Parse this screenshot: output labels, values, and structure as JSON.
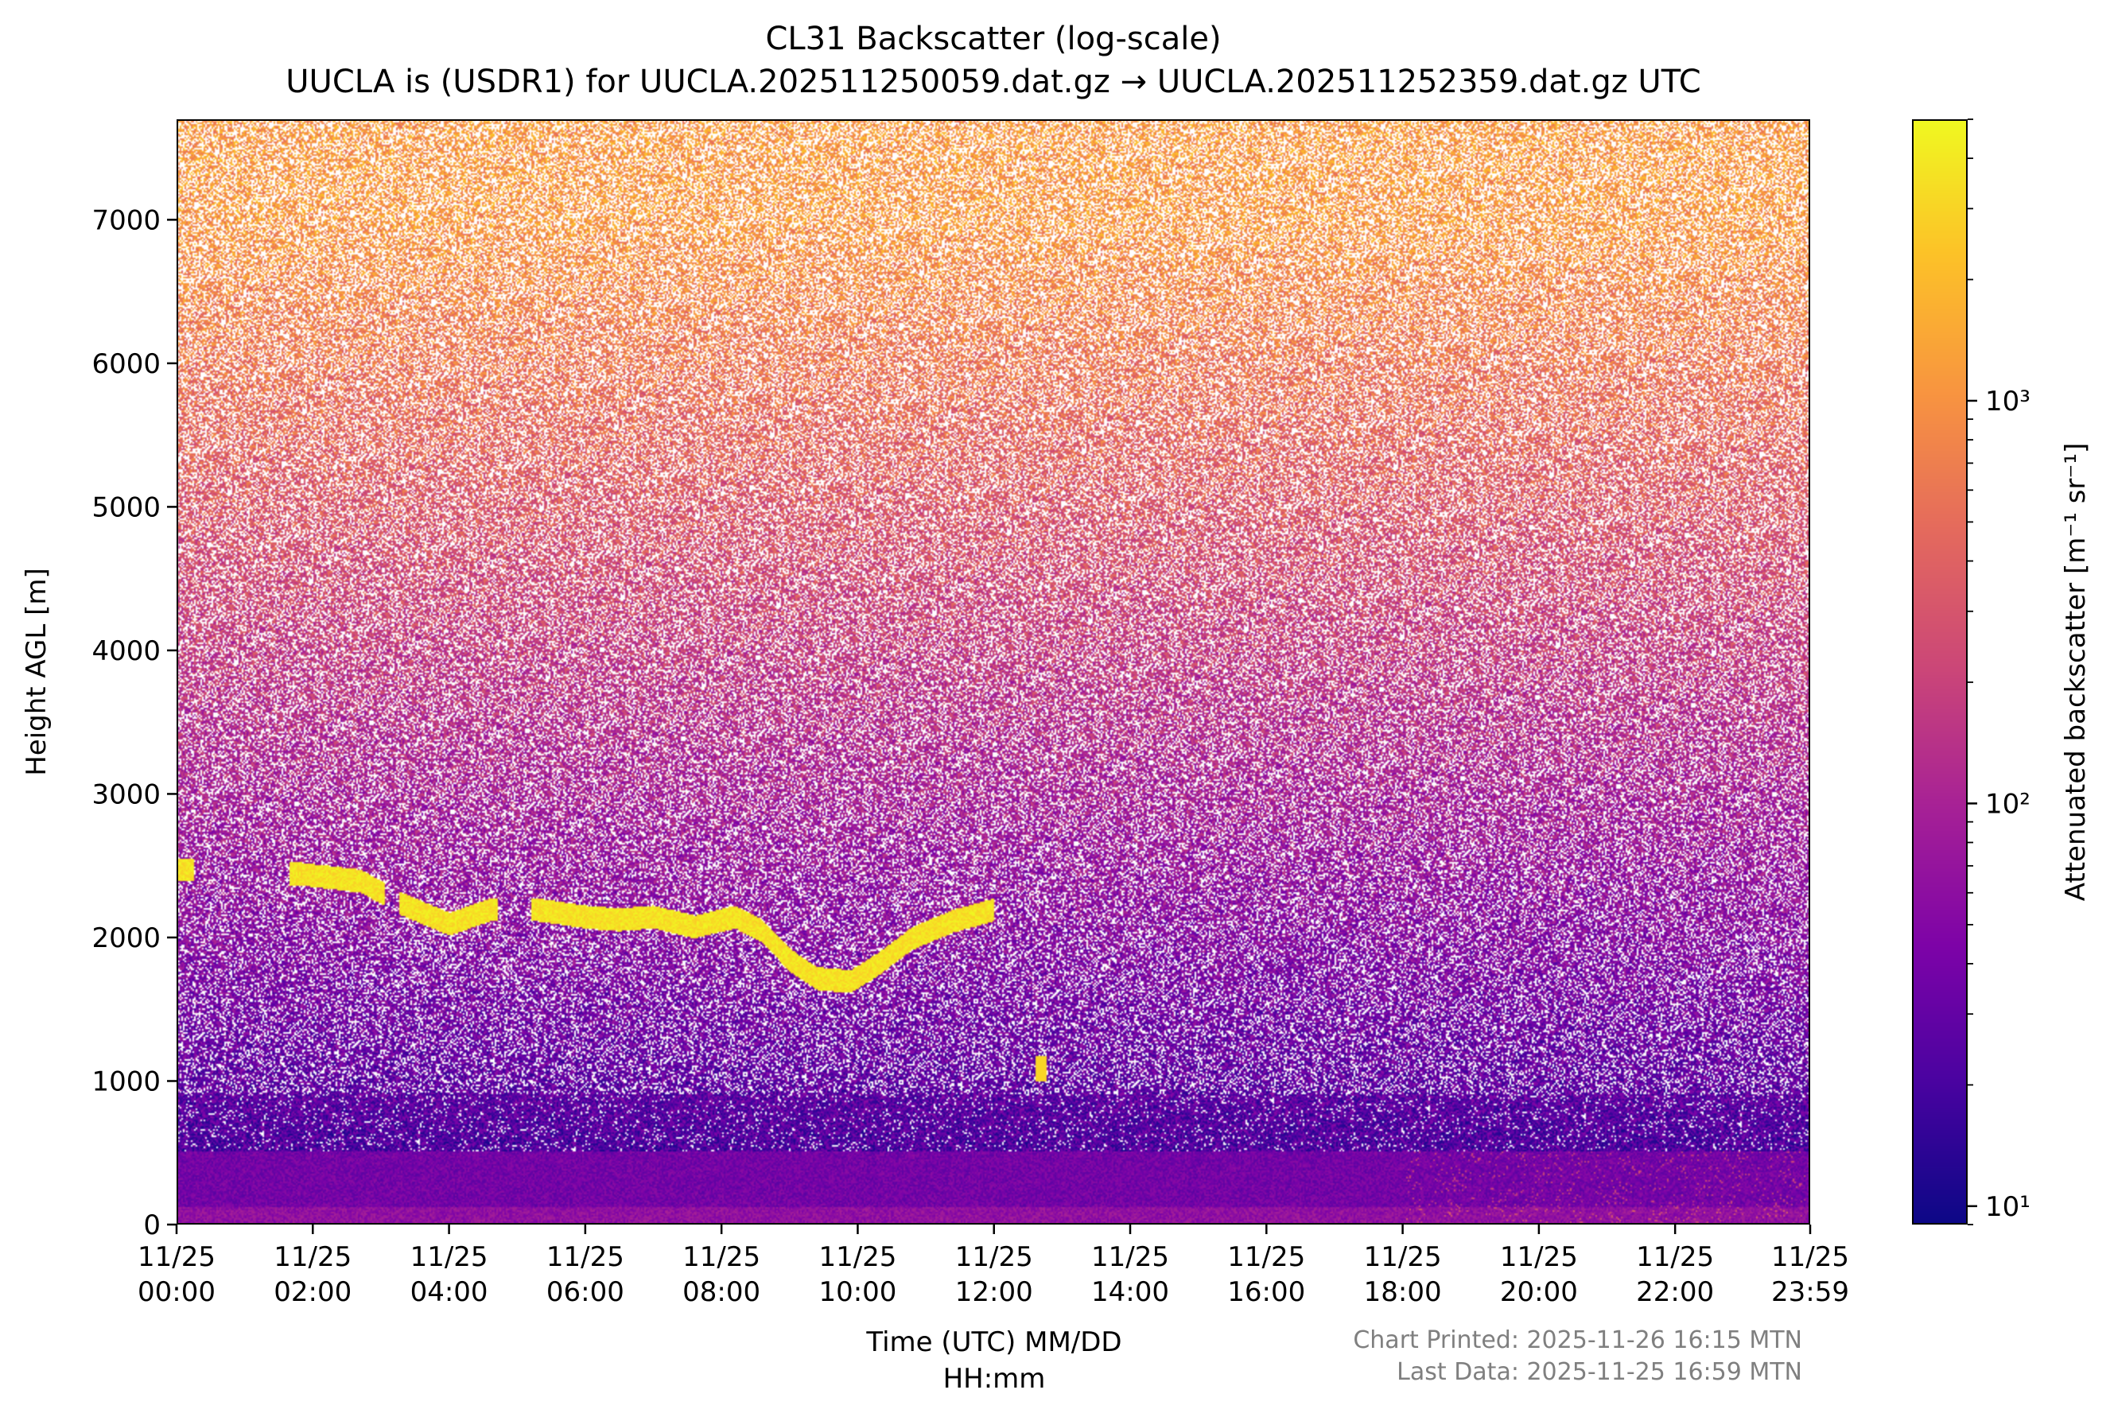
{
  "chart_data": {
    "type": "heatmap",
    "title": "CL31 Backscatter (log-scale)",
    "subtitle": "UUCLA is (USDR1) for UUCLA.202511250059.dat.gz → UUCLA.202511252359.dat.gz UTC",
    "xlabel_lines": [
      "Time (UTC) MM/DD",
      "HH:mm"
    ],
    "ylabel": "Height AGL [m]",
    "colorbar_label": "Attenuated backscatter [m⁻¹ sr⁻¹]",
    "colorbar_scale": "log",
    "colorbar_range": [
      9,
      5000
    ],
    "colorbar_ticks": [
      {
        "value": 10,
        "label": "10¹"
      },
      {
        "value": 100,
        "label": "10²"
      },
      {
        "value": 1000,
        "label": "10³"
      }
    ],
    "colormap": "plasma",
    "xlim_hours": [
      0,
      23.983
    ],
    "ylim": [
      0,
      7700
    ],
    "x_ticks": [
      {
        "hour": 0,
        "date": "11/25",
        "time": "00:00"
      },
      {
        "hour": 2,
        "date": "11/25",
        "time": "02:00"
      },
      {
        "hour": 4,
        "date": "11/25",
        "time": "04:00"
      },
      {
        "hour": 6,
        "date": "11/25",
        "time": "06:00"
      },
      {
        "hour": 8,
        "date": "11/25",
        "time": "08:00"
      },
      {
        "hour": 10,
        "date": "11/25",
        "time": "10:00"
      },
      {
        "hour": 12,
        "date": "11/25",
        "time": "12:00"
      },
      {
        "hour": 14,
        "date": "11/25",
        "time": "14:00"
      },
      {
        "hour": 16,
        "date": "11/25",
        "time": "16:00"
      },
      {
        "hour": 18,
        "date": "11/25",
        "time": "18:00"
      },
      {
        "hour": 20,
        "date": "11/25",
        "time": "20:00"
      },
      {
        "hour": 22,
        "date": "11/25",
        "time": "22:00"
      },
      {
        "hour": 23.983,
        "date": "11/25",
        "time": "23:59"
      }
    ],
    "y_ticks": [
      0,
      1000,
      2000,
      3000,
      4000,
      5000,
      6000,
      7000
    ],
    "cloud_base_layer": [
      {
        "hour": 0.0,
        "height_m": 2480
      },
      {
        "hour": 1.8,
        "height_m": 2450
      },
      {
        "hour": 2.7,
        "height_m": 2400
      },
      {
        "hour": 3.3,
        "height_m": 2240
      },
      {
        "hour": 4.0,
        "height_m": 2100
      },
      {
        "hour": 4.6,
        "height_m": 2200
      },
      {
        "hour": 5.3,
        "height_m": 2200
      },
      {
        "hour": 6.0,
        "height_m": 2150
      },
      {
        "hour": 6.5,
        "height_m": 2130
      },
      {
        "hour": 7.0,
        "height_m": 2150
      },
      {
        "hour": 7.6,
        "height_m": 2080
      },
      {
        "hour": 8.2,
        "height_m": 2150
      },
      {
        "hour": 8.6,
        "height_m": 2050
      },
      {
        "hour": 9.0,
        "height_m": 1850
      },
      {
        "hour": 9.4,
        "height_m": 1720
      },
      {
        "hour": 9.9,
        "height_m": 1700
      },
      {
        "hour": 10.3,
        "height_m": 1820
      },
      {
        "hour": 10.8,
        "height_m": 2000
      },
      {
        "hour": 11.4,
        "height_m": 2120
      },
      {
        "hour": 12.0,
        "height_m": 2200
      }
    ],
    "isolated_echo": {
      "hour": 12.7,
      "height_m": 1080
    },
    "boundary_layer_top_m": 500
  },
  "footer": {
    "printed": "Chart Printed: 2025-11-26 16:15 MTN",
    "last_data": "Last Data: 2025-11-25 16:59 MTN"
  }
}
